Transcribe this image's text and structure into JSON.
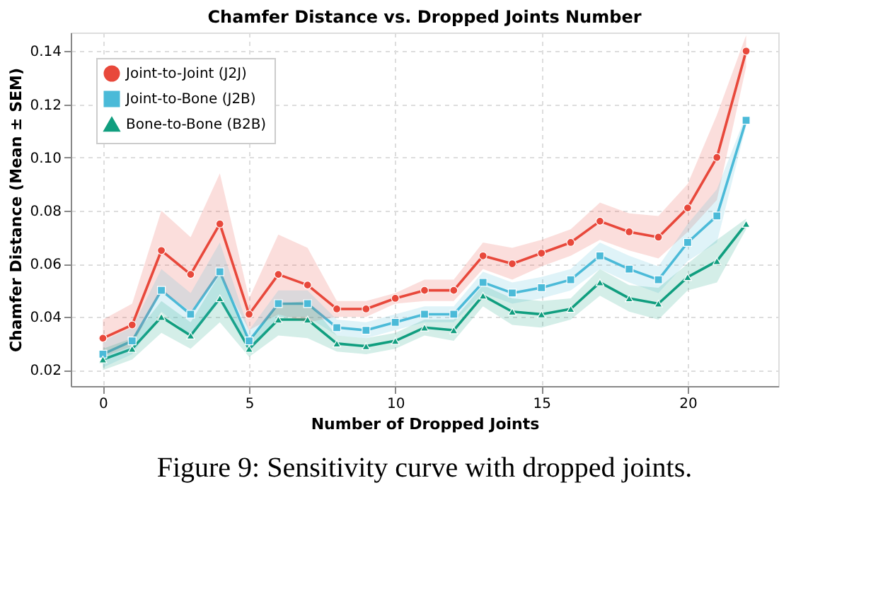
{
  "chart_data": {
    "type": "line",
    "title": "Chamfer Distance vs. Dropped Joints Number",
    "xlabel": "Number of Dropped Joints",
    "ylabel": "Chamfer Distance (Mean ± SEM)",
    "x": [
      0,
      1,
      2,
      3,
      4,
      5,
      6,
      7,
      8,
      9,
      10,
      11,
      12,
      13,
      14,
      15,
      16,
      17,
      18,
      19,
      20,
      21,
      22
    ],
    "xlim": [
      -1.1,
      23.1
    ],
    "xticks": [
      0,
      5,
      10,
      15,
      20
    ],
    "ylim": [
      0.014,
      0.147
    ],
    "yticks": [
      0.02,
      0.04,
      0.06,
      0.08,
      {
        "value": 0.1,
        "label": "0.10"
      },
      0.12,
      0.14
    ],
    "grid": true,
    "legend": "top left",
    "line_style": "solid",
    "series": [
      {
        "name": "Joint-to-Joint (J2J)",
        "color": "#e8483b",
        "marker": "circle",
        "values": [
          0.032,
          0.037,
          0.065,
          0.056,
          0.075,
          0.041,
          0.056,
          0.052,
          0.043,
          0.043,
          0.047,
          0.05,
          0.05,
          0.063,
          0.06,
          0.064,
          0.068,
          0.076,
          0.072,
          0.07,
          0.081,
          0.1,
          0.14
        ],
        "upper": [
          0.039,
          0.045,
          0.08,
          0.07,
          0.094,
          0.047,
          0.071,
          0.066,
          0.046,
          0.046,
          0.049,
          0.054,
          0.054,
          0.068,
          0.066,
          0.069,
          0.073,
          0.083,
          0.079,
          0.078,
          0.09,
          0.116,
          0.146
        ],
        "lower": [
          0.025,
          0.029,
          0.05,
          0.042,
          0.056,
          0.035,
          0.041,
          0.038,
          0.04,
          0.04,
          0.045,
          0.046,
          0.046,
          0.058,
          0.054,
          0.059,
          0.063,
          0.069,
          0.065,
          0.062,
          0.072,
          0.084,
          0.134
        ]
      },
      {
        "name": "Joint-to-Bone (J2B)",
        "color": "#4bbad8",
        "marker": "square",
        "values": [
          0.026,
          0.031,
          0.05,
          0.041,
          0.057,
          0.031,
          0.045,
          0.045,
          0.036,
          0.035,
          0.038,
          0.041,
          0.041,
          0.053,
          0.049,
          0.051,
          0.054,
          0.063,
          0.058,
          0.054,
          0.068,
          0.078,
          0.114
        ],
        "upper": [
          0.031,
          0.036,
          0.058,
          0.049,
          0.068,
          0.035,
          0.05,
          0.05,
          0.039,
          0.038,
          0.041,
          0.044,
          0.044,
          0.057,
          0.053,
          0.055,
          0.058,
          0.068,
          0.063,
          0.059,
          0.075,
          0.088,
          0.116
        ],
        "lower": [
          0.021,
          0.026,
          0.042,
          0.033,
          0.046,
          0.027,
          0.04,
          0.04,
          0.033,
          0.032,
          0.035,
          0.038,
          0.038,
          0.049,
          0.045,
          0.047,
          0.05,
          0.058,
          0.053,
          0.049,
          0.061,
          0.068,
          0.112
        ]
      },
      {
        "name": "Bone-to-Bone (B2B)",
        "color": "#119e7f",
        "marker": "triangle",
        "values": [
          0.024,
          0.028,
          0.04,
          0.033,
          0.047,
          0.028,
          0.039,
          0.039,
          0.03,
          0.029,
          0.031,
          0.036,
          0.035,
          0.048,
          0.042,
          0.041,
          0.043,
          0.053,
          0.047,
          0.045,
          0.055,
          0.061,
          0.075
        ],
        "upper": [
          0.028,
          0.032,
          0.046,
          0.038,
          0.056,
          0.031,
          0.045,
          0.046,
          0.033,
          0.032,
          0.034,
          0.039,
          0.039,
          0.052,
          0.047,
          0.046,
          0.047,
          0.058,
          0.052,
          0.051,
          0.06,
          0.069,
          0.077
        ],
        "lower": [
          0.02,
          0.024,
          0.034,
          0.028,
          0.038,
          0.025,
          0.033,
          0.032,
          0.027,
          0.026,
          0.028,
          0.033,
          0.031,
          0.044,
          0.037,
          0.036,
          0.039,
          0.048,
          0.042,
          0.039,
          0.05,
          0.053,
          0.073
        ]
      }
    ],
    "annotations": [
      "Figure 9: Sensitivity curve with dropped joints."
    ]
  }
}
